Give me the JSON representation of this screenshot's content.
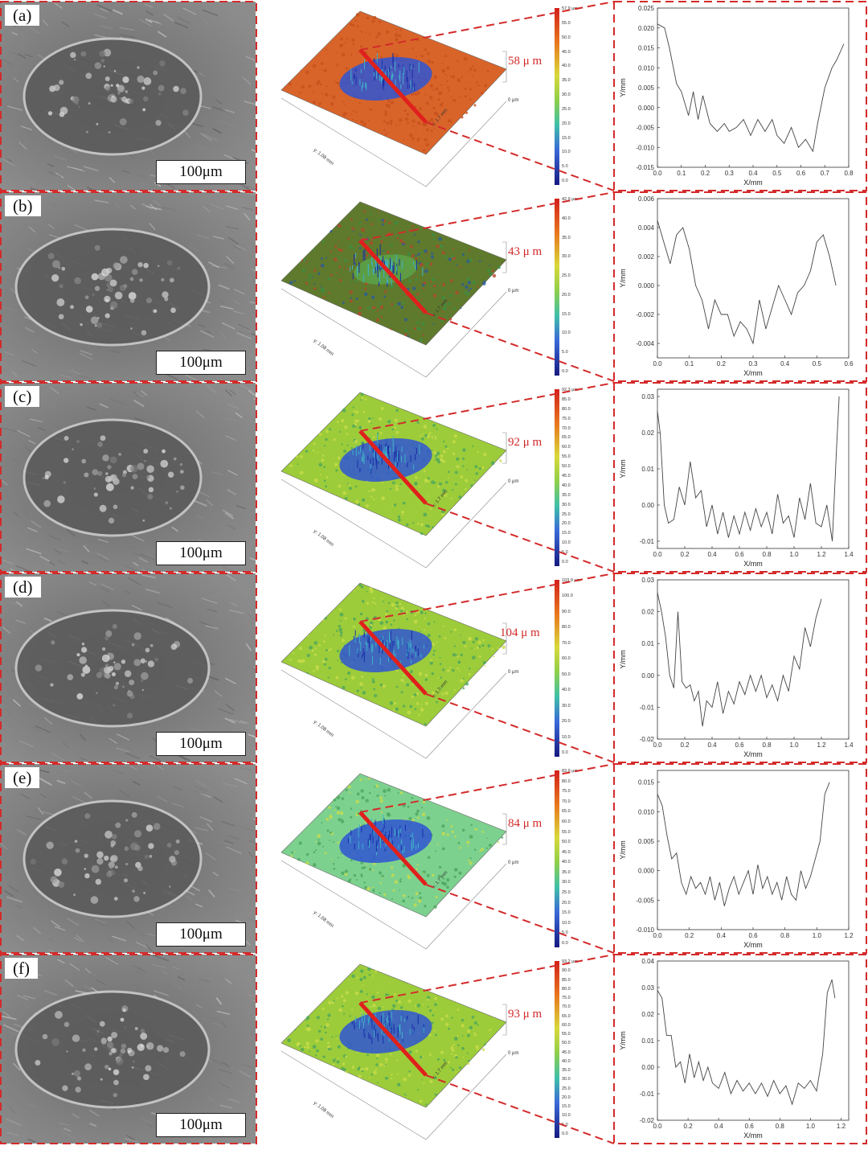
{
  "rows": [
    {
      "label": "(a)",
      "scale_bar": "100μm",
      "depth_label": "58 μ m",
      "zero_label": "0 μm",
      "surface_color": "#d8642a",
      "map_axes": {
        "x": "x: 1.7 mm",
        "y": "y: 1.08 mm"
      },
      "colorbar_ticks": [
        "57.9 μm",
        "55.0",
        "50.0",
        "45.0",
        "40.0",
        "35.0",
        "30.0",
        "25.0",
        "20.0",
        "15.0",
        "10.0",
        "5.0",
        "0.0"
      ],
      "profile": {
        "x_ticks": [
          "0.0",
          "0.1",
          "0.2",
          "0.3",
          "0.4",
          "0.5",
          "0.6",
          "0.7",
          "0.8"
        ],
        "y_ticks": [
          "0.025",
          "0.020",
          "0.015",
          "0.010",
          "0.005",
          "0.000",
          "-0.005",
          "-0.010",
          "-0.015"
        ],
        "xlabel": "X/mm",
        "ylabel": "Y/mm",
        "xlim": [
          0,
          0.8
        ],
        "ylim": [
          -0.015,
          0.025
        ],
        "x": [
          0.0,
          0.03,
          0.05,
          0.08,
          0.1,
          0.13,
          0.15,
          0.17,
          0.19,
          0.22,
          0.25,
          0.28,
          0.3,
          0.33,
          0.36,
          0.39,
          0.42,
          0.45,
          0.48,
          0.5,
          0.53,
          0.56,
          0.59,
          0.62,
          0.65,
          0.67,
          0.7,
          0.73,
          0.75,
          0.78
        ],
        "y": [
          0.021,
          0.02,
          0.015,
          0.006,
          0.004,
          -0.002,
          0.004,
          -0.003,
          0.003,
          -0.004,
          -0.006,
          -0.004,
          -0.006,
          -0.005,
          -0.003,
          -0.007,
          -0.003,
          -0.006,
          -0.003,
          -0.007,
          -0.009,
          -0.005,
          -0.01,
          -0.008,
          -0.011,
          -0.004,
          0.005,
          0.01,
          0.012,
          0.016
        ]
      }
    },
    {
      "label": "(b)",
      "scale_bar": "100μm",
      "depth_label": "43 μ m",
      "zero_label": "0 μm",
      "surface_color": "#5f7a2c",
      "map_axes": {
        "x": "x: 1.7 mm",
        "y": "y: 1.08 mm"
      },
      "colorbar_ticks": [
        "42.9 μm",
        "40.0",
        "35.0",
        "30.0",
        "25.0",
        "20.0",
        "15.0",
        "10.0",
        "5.0",
        "0.0"
      ],
      "profile": {
        "x_ticks": [
          "0.0",
          "0.1",
          "0.2",
          "0.3",
          "0.4",
          "0.5",
          "0.6"
        ],
        "y_ticks": [
          "0.006",
          "0.004",
          "0.002",
          "0.000",
          "-0.002",
          "-0.004"
        ],
        "xlabel": "X/mm",
        "ylabel": "Y/mm",
        "xlim": [
          0,
          0.6
        ],
        "ylim": [
          -0.005,
          0.006
        ],
        "x": [
          0.0,
          0.02,
          0.04,
          0.06,
          0.08,
          0.1,
          0.12,
          0.14,
          0.16,
          0.18,
          0.2,
          0.22,
          0.24,
          0.26,
          0.28,
          0.3,
          0.32,
          0.34,
          0.36,
          0.38,
          0.4,
          0.42,
          0.44,
          0.46,
          0.48,
          0.5,
          0.52,
          0.54,
          0.56
        ],
        "y": [
          0.0045,
          0.003,
          0.0015,
          0.0035,
          0.004,
          0.0025,
          0.0,
          -0.001,
          -0.003,
          -0.001,
          -0.002,
          -0.002,
          -0.0035,
          -0.0025,
          -0.003,
          -0.004,
          -0.001,
          -0.003,
          -0.0015,
          0.0,
          -0.001,
          -0.002,
          -0.0005,
          0.0,
          0.001,
          0.003,
          0.0035,
          0.002,
          0.0
        ]
      }
    },
    {
      "label": "(c)",
      "scale_bar": "100μm",
      "depth_label": "92 μ m",
      "zero_label": "0 μm",
      "surface_color": "#9ccc3a",
      "map_axes": {
        "x": "x: 1.7 mm",
        "y": "y: 1.08 mm"
      },
      "colorbar_ticks": [
        "92.3 μm",
        "85.0",
        "80.0",
        "75.0",
        "70.0",
        "65.0",
        "60.0",
        "55.0",
        "50.0",
        "45.0",
        "40.0",
        "35.0",
        "30.0",
        "25.0",
        "20.0",
        "15.0",
        "10.0",
        "5.0",
        "0.0"
      ],
      "profile": {
        "x_ticks": [
          "0.0",
          "0.2",
          "0.4",
          "0.6",
          "0.8",
          "1.0",
          "1.2",
          "1.4"
        ],
        "y_ticks": [
          "0.03",
          "0.02",
          "0.01",
          "0.00",
          "-0.01"
        ],
        "xlabel": "X/mm",
        "ylabel": "Y/mm",
        "xlim": [
          0,
          1.4
        ],
        "ylim": [
          -0.012,
          0.032
        ],
        "x": [
          0.0,
          0.02,
          0.05,
          0.08,
          0.12,
          0.16,
          0.2,
          0.24,
          0.28,
          0.32,
          0.36,
          0.4,
          0.44,
          0.48,
          0.52,
          0.56,
          0.6,
          0.64,
          0.68,
          0.72,
          0.76,
          0.8,
          0.84,
          0.88,
          0.92,
          0.96,
          1.0,
          1.04,
          1.08,
          1.12,
          1.16,
          1.2,
          1.24,
          1.28,
          1.31,
          1.33
        ],
        "y": [
          0.026,
          0.02,
          0.0,
          -0.005,
          -0.004,
          0.005,
          0.0,
          0.012,
          0.002,
          0.004,
          -0.006,
          0.0,
          -0.008,
          -0.002,
          -0.009,
          -0.003,
          -0.008,
          -0.002,
          -0.007,
          -0.001,
          -0.006,
          -0.002,
          -0.008,
          0.003,
          -0.005,
          -0.003,
          -0.009,
          0.002,
          -0.004,
          0.006,
          -0.005,
          -0.006,
          0.0,
          -0.01,
          0.015,
          0.03
        ]
      }
    },
    {
      "label": "(d)",
      "scale_bar": "100μm",
      "depth_label": "104 μ m",
      "zero_label": "0 μm",
      "surface_color": "#9ccc3a",
      "map_axes": {
        "x": "x: 1.7 mm",
        "y": "y: 1.08 mm"
      },
      "colorbar_ticks": [
        "103.9 μm",
        "100.0",
        "90.0",
        "80.0",
        "70.0",
        "60.0",
        "50.0",
        "40.0",
        "30.0",
        "20.0",
        "10.0",
        "0.0"
      ],
      "profile": {
        "x_ticks": [
          "0.0",
          "0.2",
          "0.4",
          "0.6",
          "0.8",
          "1.0",
          "1.2",
          "1.4"
        ],
        "y_ticks": [
          "0.03",
          "0.02",
          "0.01",
          "0.00",
          "-0.01",
          "-0.02"
        ],
        "xlabel": "X/mm",
        "ylabel": "Y/mm",
        "xlim": [
          0,
          1.4
        ],
        "ylim": [
          -0.02,
          0.03
        ],
        "x": [
          0.0,
          0.03,
          0.06,
          0.09,
          0.12,
          0.15,
          0.18,
          0.21,
          0.24,
          0.27,
          0.3,
          0.33,
          0.36,
          0.4,
          0.44,
          0.48,
          0.52,
          0.56,
          0.6,
          0.64,
          0.68,
          0.72,
          0.76,
          0.8,
          0.84,
          0.88,
          0.92,
          0.96,
          1.0,
          1.04,
          1.08,
          1.12,
          1.16,
          1.2
        ],
        "y": [
          0.026,
          0.02,
          0.012,
          0.0,
          -0.004,
          0.02,
          -0.002,
          -0.004,
          -0.003,
          -0.008,
          -0.005,
          -0.016,
          -0.008,
          -0.01,
          -0.002,
          -0.012,
          -0.005,
          -0.009,
          -0.002,
          -0.006,
          0.0,
          -0.005,
          0.0,
          -0.007,
          -0.003,
          -0.008,
          0.0,
          -0.005,
          0.006,
          0.002,
          0.015,
          0.009,
          0.018,
          0.024
        ]
      }
    },
    {
      "label": "(e)",
      "scale_bar": "100μm",
      "depth_label": "84 μ m",
      "zero_label": "0 μm",
      "surface_color": "#7dd18f",
      "map_axes": {
        "x": "x: 1.7 mm",
        "y": "y: 1.08 mm"
      },
      "colorbar_ticks": [
        "83.9 μm",
        "80.0",
        "75.0",
        "70.0",
        "65.0",
        "60.0",
        "55.0",
        "50.0",
        "45.0",
        "40.0",
        "35.0",
        "30.0",
        "25.0",
        "20.0",
        "15.0",
        "10.0",
        "5.0",
        "0.0"
      ],
      "profile": {
        "x_ticks": [
          "0.0",
          "0.2",
          "0.4",
          "0.6",
          "0.8",
          "1.0",
          "1.2"
        ],
        "y_ticks": [
          "0.015",
          "0.010",
          "0.005",
          "0.000",
          "-0.005",
          "-0.010"
        ],
        "xlabel": "X/mm",
        "ylabel": "Y/mm",
        "xlim": [
          0,
          1.2
        ],
        "ylim": [
          -0.01,
          0.017
        ],
        "x": [
          0.0,
          0.03,
          0.06,
          0.09,
          0.12,
          0.15,
          0.18,
          0.21,
          0.24,
          0.27,
          0.3,
          0.33,
          0.36,
          0.39,
          0.42,
          0.45,
          0.48,
          0.51,
          0.54,
          0.57,
          0.6,
          0.63,
          0.66,
          0.69,
          0.72,
          0.75,
          0.78,
          0.81,
          0.84,
          0.87,
          0.9,
          0.93,
          0.96,
          0.99,
          1.02,
          1.05,
          1.08
        ],
        "y": [
          0.013,
          0.011,
          0.006,
          0.002,
          0.003,
          -0.002,
          -0.004,
          -0.001,
          -0.003,
          -0.002,
          -0.004,
          -0.001,
          -0.005,
          -0.002,
          -0.006,
          -0.003,
          -0.001,
          -0.004,
          -0.002,
          0.0,
          -0.004,
          0.001,
          -0.003,
          -0.001,
          -0.004,
          -0.002,
          -0.005,
          -0.001,
          -0.004,
          -0.005,
          0.0,
          -0.003,
          -0.001,
          0.002,
          0.005,
          0.013,
          0.015
        ]
      }
    },
    {
      "label": "(f)",
      "scale_bar": "100μm",
      "depth_label": "93 μ m",
      "zero_label": "0 μm",
      "surface_color": "#9ccc3a",
      "map_axes": {
        "x": "x: 1.7 mm",
        "y": "y: 1.08 mm"
      },
      "colorbar_ticks": [
        "93.2 μm",
        "90.0",
        "85.0",
        "80.0",
        "75.0",
        "70.0",
        "65.0",
        "60.0",
        "55.0",
        "50.0",
        "45.0",
        "40.0",
        "35.0",
        "30.0",
        "25.0",
        "20.0",
        "15.0",
        "10.0",
        "5.0",
        "0.0"
      ],
      "profile": {
        "x_ticks": [
          "0.0",
          "0.2",
          "0.4",
          "0.6",
          "0.8",
          "1.0",
          "1.2"
        ],
        "y_ticks": [
          "0.04",
          "0.03",
          "0.02",
          "0.01",
          "0.00",
          "-0.01",
          "-0.02"
        ],
        "xlabel": "X/mm",
        "ylabel": "Y/mm",
        "xlim": [
          0,
          1.25
        ],
        "ylim": [
          -0.02,
          0.04
        ],
        "x": [
          0.0,
          0.03,
          0.06,
          0.09,
          0.12,
          0.15,
          0.18,
          0.21,
          0.24,
          0.27,
          0.3,
          0.33,
          0.36,
          0.4,
          0.44,
          0.48,
          0.52,
          0.56,
          0.6,
          0.64,
          0.68,
          0.72,
          0.76,
          0.8,
          0.84,
          0.88,
          0.92,
          0.96,
          1.0,
          1.04,
          1.08,
          1.11,
          1.14,
          1.16
        ],
        "y": [
          0.029,
          0.026,
          0.012,
          0.012,
          0.0,
          0.002,
          -0.006,
          0.005,
          -0.004,
          0.002,
          -0.005,
          0.0,
          -0.006,
          -0.008,
          -0.002,
          -0.01,
          -0.005,
          -0.009,
          -0.006,
          -0.01,
          -0.006,
          -0.011,
          -0.005,
          -0.01,
          -0.007,
          -0.014,
          -0.006,
          -0.008,
          -0.005,
          -0.009,
          0.005,
          0.028,
          0.033,
          0.026
        ]
      }
    }
  ]
}
